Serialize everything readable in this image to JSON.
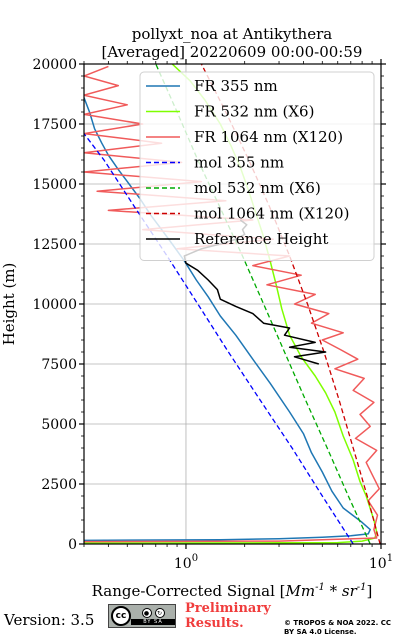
{
  "chart_data": {
    "type": "line",
    "title": "pollyxt_noa at Antikythera",
    "subtitle": "[Averaged] 20220609 00:00-00:59",
    "xlabel_text": "Range-Corrected Signal [",
    "xlabel_unit": "Mm",
    "xlabel_unit_exp": "-1",
    "xlabel_mult": " * sr",
    "xlabel_mult_exp": "-1",
    "xlabel_end": "]",
    "ylabel": "Height (m)",
    "x_scale": "log",
    "xlim": [
      0.3,
      10
    ],
    "ylim": [
      0,
      20000
    ],
    "x_ticks": [
      {
        "value": 1,
        "label": "10",
        "exp": "0"
      },
      {
        "value": 10,
        "label": "10",
        "exp": "1"
      }
    ],
    "y_ticks": [
      0,
      2500,
      5000,
      7500,
      10000,
      12500,
      15000,
      17500,
      20000
    ],
    "grid": true,
    "legend_position": "upper-right",
    "series": [
      {
        "name": "FR 355 nm",
        "color": "#1f77b4",
        "style": "solid",
        "points": [
          [
            0.3,
            150
          ],
          [
            1.5,
            180
          ],
          [
            3,
            220
          ],
          [
            5,
            280
          ],
          [
            7,
            340
          ],
          [
            8.6,
            420
          ],
          [
            8.8,
            600
          ],
          [
            8,
            900
          ],
          [
            6.4,
            1500
          ],
          [
            5.6,
            2200
          ],
          [
            5,
            3000
          ],
          [
            4.4,
            3800
          ],
          [
            4,
            4600
          ],
          [
            3.4,
            5500
          ],
          [
            2.7,
            6700
          ],
          [
            2.2,
            7700
          ],
          [
            1.8,
            8700
          ],
          [
            1.5,
            9500
          ],
          [
            1.3,
            10300
          ],
          [
            1.13,
            11000
          ],
          [
            0.98,
            11800
          ],
          [
            0.85,
            12500
          ],
          [
            0.75,
            13100
          ],
          [
            0.66,
            13700
          ],
          [
            0.58,
            14400
          ],
          [
            0.5,
            15100
          ],
          [
            0.45,
            15600
          ],
          [
            0.4,
            16200
          ],
          [
            0.37,
            16700
          ],
          [
            0.34,
            17300
          ],
          [
            0.32,
            18000
          ],
          [
            0.3,
            18600
          ]
        ]
      },
      {
        "name": "FR 532 nm (X6)",
        "color": "#7fff00",
        "style": "solid",
        "points": [
          [
            0.3,
            40
          ],
          [
            3,
            50
          ],
          [
            6,
            60
          ],
          [
            8,
            120
          ],
          [
            9.3,
            250
          ],
          [
            9.5,
            500
          ],
          [
            9.2,
            1000
          ],
          [
            8.4,
            2000
          ],
          [
            7.8,
            2600
          ],
          [
            7.2,
            3500
          ],
          [
            6.4,
            4500
          ],
          [
            5.8,
            5500
          ],
          [
            5.2,
            6300
          ],
          [
            4.6,
            7000
          ],
          [
            3.9,
            7800
          ],
          [
            3.4,
            8700
          ],
          [
            3.1,
            9800
          ],
          [
            2.9,
            10800
          ],
          [
            2.7,
            11800
          ],
          [
            2.5,
            12800
          ],
          [
            2.3,
            13700
          ],
          [
            2.1,
            14700
          ],
          [
            1.9,
            15700
          ],
          [
            1.7,
            16600
          ],
          [
            1.5,
            17500
          ],
          [
            1.25,
            18500
          ],
          [
            1.05,
            19300
          ],
          [
            0.85,
            20000
          ]
        ]
      },
      {
        "name": "FR 1064 nm (X120)",
        "color": "#f05a5a",
        "style": "solid",
        "points": [
          [
            0.3,
            100
          ],
          [
            3,
            120
          ],
          [
            9.5,
            250
          ],
          [
            9.2,
            600
          ],
          [
            9.6,
            1200
          ],
          [
            8.6,
            1800
          ],
          [
            9.8,
            2300
          ],
          [
            9,
            2900
          ],
          [
            8.4,
            3400
          ],
          [
            9.5,
            3900
          ],
          [
            7.4,
            4400
          ],
          [
            8.8,
            4900
          ],
          [
            7.8,
            5400
          ],
          [
            9.2,
            5900
          ],
          [
            7.2,
            6400
          ],
          [
            8.2,
            6900
          ],
          [
            5.8,
            7300
          ],
          [
            7.6,
            7700
          ],
          [
            6.2,
            8100
          ],
          [
            5,
            8500
          ],
          [
            6.4,
            8800
          ],
          [
            4.4,
            9200
          ],
          [
            5.4,
            9600
          ],
          [
            3.6,
            10000
          ],
          [
            4.6,
            10400
          ],
          [
            2.6,
            10800
          ],
          [
            3.9,
            11200
          ],
          [
            2.2,
            11600
          ],
          [
            3.4,
            12000
          ],
          [
            0.9,
            12300
          ],
          [
            2.8,
            12700
          ],
          [
            0.6,
            13100
          ],
          [
            2.2,
            13500
          ],
          [
            0.4,
            13900
          ],
          [
            1.6,
            14300
          ],
          [
            0.35,
            14700
          ],
          [
            1.2,
            15100
          ],
          [
            0.3,
            15500
          ],
          [
            0.95,
            15900
          ],
          [
            0.3,
            16300
          ],
          [
            0.75,
            16700
          ],
          [
            0.3,
            17100
          ],
          [
            0.6,
            17500
          ],
          [
            0.3,
            17900
          ],
          [
            0.5,
            18300
          ],
          [
            0.3,
            18700
          ],
          [
            0.45,
            19100
          ],
          [
            0.3,
            19500
          ],
          [
            0.4,
            19900
          ]
        ]
      },
      {
        "name": "mol 355 nm",
        "color": "#0000ff",
        "style": "dashed",
        "points": [
          [
            7.2,
            0
          ],
          [
            5,
            2000
          ],
          [
            3.5,
            4000
          ],
          [
            2.4,
            6000
          ],
          [
            1.65,
            8000
          ],
          [
            1.15,
            10000
          ],
          [
            0.8,
            12000
          ],
          [
            0.55,
            14000
          ],
          [
            0.38,
            16000
          ],
          [
            0.3,
            17100
          ]
        ]
      },
      {
        "name": "mol 532 nm (X6)",
        "color": "#00aa00",
        "style": "dashed",
        "points": [
          [
            8.8,
            0
          ],
          [
            6.8,
            2000
          ],
          [
            5.3,
            4000
          ],
          [
            4.1,
            6000
          ],
          [
            3.2,
            8000
          ],
          [
            2.5,
            10000
          ],
          [
            1.95,
            12000
          ],
          [
            1.5,
            14000
          ],
          [
            1.15,
            16000
          ],
          [
            0.9,
            18000
          ],
          [
            0.7,
            20000
          ]
        ]
      },
      {
        "name": "mol 1064 nm (X120)",
        "color": "#cc0000",
        "style": "dashed",
        "points": [
          [
            9.9,
            0
          ],
          [
            8.5,
            2000
          ],
          [
            7.2,
            4000
          ],
          [
            6.1,
            6000
          ],
          [
            5.1,
            8000
          ],
          [
            4.2,
            10000
          ],
          [
            3.4,
            12000
          ],
          [
            2.7,
            14000
          ],
          [
            2.1,
            16000
          ],
          [
            1.6,
            18000
          ],
          [
            1.2,
            20000
          ]
        ]
      },
      {
        "name": "Reference Height",
        "color": "#000000",
        "style": "solid",
        "points": [
          [
            4.8,
            7500
          ],
          [
            3.6,
            7800
          ],
          [
            5.2,
            8000
          ],
          [
            3.4,
            8200
          ],
          [
            4.6,
            8400
          ],
          [
            3.2,
            8700
          ],
          [
            3.4,
            9000
          ],
          [
            2.5,
            9200
          ],
          [
            2.2,
            9600
          ],
          [
            1.8,
            9900
          ],
          [
            1.5,
            10200
          ],
          [
            1.45,
            10600
          ],
          [
            1.3,
            11000
          ],
          [
            1.15,
            11400
          ],
          [
            1.0,
            11700
          ],
          [
            0.98,
            12000
          ],
          [
            1.2,
            12300
          ],
          [
            1.5,
            12500
          ],
          [
            1.8,
            12700
          ],
          [
            2.0,
            12900
          ],
          [
            1.95,
            13100
          ],
          [
            2.05,
            13300
          ],
          [
            1.9,
            13500
          ]
        ]
      }
    ]
  },
  "footer": {
    "version": "Version: 3.5",
    "preliminary": "Preliminary Results.",
    "copyright": "© TROPOS & NOA 2022. CC BY SA 4.0 License.",
    "cc_text": "cc",
    "cc_by": "BY SA"
  }
}
